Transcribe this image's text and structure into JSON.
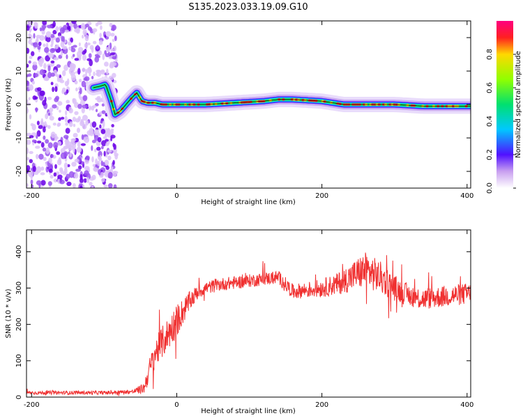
{
  "title": "S135.2023.033.19.09.G10",
  "colors": {
    "snr_line": "#f03030",
    "frame": "#000000"
  },
  "chart_data": [
    {
      "type": "heatmap",
      "xlabel": "Height of straight line (km)",
      "ylabel": "Frequency (Hz)",
      "xlim": [
        -207,
        405
      ],
      "ylim": [
        -25,
        25
      ],
      "xticks": [
        "-200",
        "0",
        "200",
        "400"
      ],
      "xtick_values": [
        -200,
        0,
        200,
        400
      ],
      "yticks": [
        "20",
        "10",
        "0",
        "-10",
        "-20"
      ],
      "ytick_values": [
        20,
        10,
        0,
        -10,
        -20
      ],
      "colorbar": {
        "label": "Normalized spectral amplitude",
        "range": [
          0,
          1
        ],
        "ticks": [
          "0.0",
          "0.2",
          "0.4",
          "0.6",
          "0.8"
        ],
        "tick_values": [
          0.0,
          0.2,
          0.4,
          0.6,
          0.8
        ],
        "colormap": "rainbow"
      },
      "ridge": {
        "x": [
          -115,
          -105,
          -98,
          -90,
          -85,
          -78,
          -70,
          -62,
          -55,
          -48,
          -40,
          -30,
          -20,
          0,
          40,
          80,
          120,
          140,
          160,
          200,
          230,
          260,
          300,
          340,
          370,
          405
        ],
        "y": [
          5,
          5.5,
          6,
          1,
          -3,
          -2,
          0,
          2,
          3.5,
          1,
          0.5,
          0.5,
          0,
          0,
          0,
          0.5,
          1,
          1.5,
          1.5,
          1,
          0,
          0,
          0,
          -0.5,
          -0.5,
          -0.5
        ]
      },
      "noise_region_x": [
        -207,
        -83
      ],
      "grid": false
    },
    {
      "type": "line",
      "xlabel": "Height of straight line (km)",
      "ylabel": "SNR (10 * v/v)",
      "xlim": [
        -207,
        405
      ],
      "ylim": [
        0,
        460
      ],
      "xticks": [
        "-200",
        "0",
        "200",
        "400"
      ],
      "xtick_values": [
        -200,
        0,
        200,
        400
      ],
      "yticks": [
        "0",
        "100",
        "200",
        "300",
        "400"
      ],
      "ytick_values": [
        0,
        100,
        200,
        300,
        400
      ],
      "envelope": {
        "x": [
          -207,
          -150,
          -100,
          -60,
          -45,
          -40,
          -30,
          -20,
          -10,
          0,
          10,
          20,
          30,
          40,
          60,
          100,
          140,
          150,
          160,
          200,
          220,
          240,
          260,
          280,
          300,
          320,
          340,
          360,
          380,
          405
        ],
        "mean": [
          12,
          12,
          12,
          15,
          25,
          60,
          120,
          150,
          180,
          210,
          240,
          270,
          290,
          300,
          310,
          320,
          330,
          310,
          290,
          300,
          310,
          330,
          350,
          330,
          300,
          280,
          270,
          275,
          280,
          285
        ],
        "spread": [
          5,
          5,
          5,
          6,
          15,
          30,
          40,
          45,
          45,
          45,
          35,
          25,
          20,
          18,
          18,
          18,
          18,
          20,
          20,
          25,
          30,
          40,
          50,
          45,
          35,
          30,
          30,
          30,
          30,
          30
        ]
      },
      "grid": false
    }
  ]
}
